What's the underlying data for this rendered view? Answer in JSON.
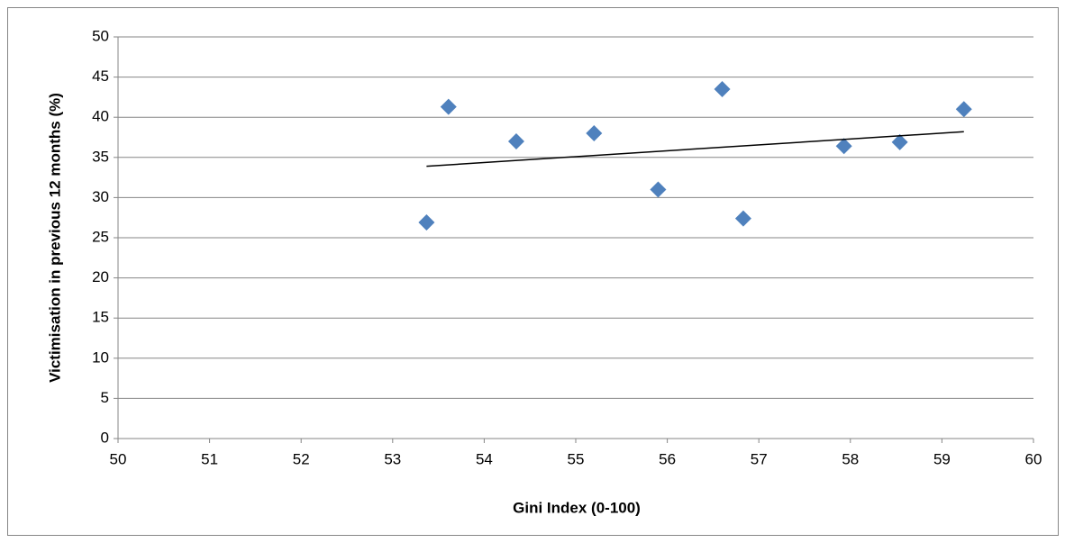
{
  "chart_data": {
    "type": "scatter",
    "x_label": "Gini Index (0-100)",
    "y_label": "Victimisation in previous 12 months (%)",
    "series": [
      {
        "color": "#4f81bd",
        "x": [
          53.37,
          53.61,
          54.35,
          55.2,
          55.9,
          56.6,
          56.83,
          57.93,
          58.54,
          59.24
        ],
        "values": [
          26.9,
          41.3,
          37,
          38,
          31,
          43.5,
          27.4,
          36.4,
          36.9,
          41
        ]
      }
    ],
    "trendline": {
      "color": "#000000",
      "x": [
        53.37,
        59.24
      ],
      "values": [
        33.9,
        38.2
      ]
    },
    "xlim": [
      50,
      60
    ],
    "xticks": [
      50,
      51,
      52,
      53,
      54,
      55,
      56,
      57,
      58,
      59,
      60
    ],
    "ylim": [
      0,
      50
    ],
    "yticks": [
      0,
      5,
      10,
      15,
      20,
      25,
      30,
      35,
      40,
      45,
      50
    ],
    "grid": true
  }
}
